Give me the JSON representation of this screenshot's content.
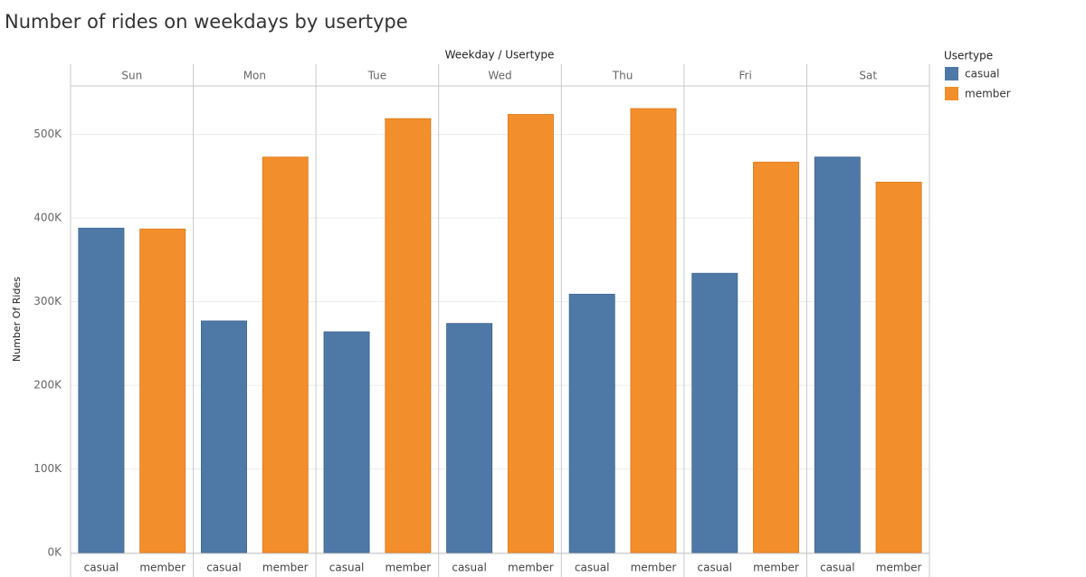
{
  "chart_data": {
    "type": "bar",
    "title": "Number of rides on weekdays by usertype",
    "column_header": "Weekday / Usertype",
    "y_label": "Number Of Rides",
    "legend_title": "Usertype",
    "categories": [
      "Sun",
      "Mon",
      "Tue",
      "Wed",
      "Thu",
      "Fri",
      "Sat"
    ],
    "series": [
      {
        "name": "casual",
        "color": "#4e79a7",
        "values": [
          388000,
          277000,
          264000,
          274000,
          309000,
          334000,
          473000
        ]
      },
      {
        "name": "member",
        "color": "#f28e2b",
        "values": [
          387000,
          473000,
          519000,
          524000,
          531000,
          467000,
          443000
        ]
      }
    ],
    "ylim": [
      0,
      557000
    ],
    "yticks": [
      {
        "value": 0,
        "label": "0K"
      },
      {
        "value": 100000,
        "label": "100K"
      },
      {
        "value": 200000,
        "label": "200K"
      },
      {
        "value": 300000,
        "label": "300K"
      },
      {
        "value": 400000,
        "label": "400K"
      },
      {
        "value": 500000,
        "label": "500K"
      }
    ],
    "grid": true
  }
}
